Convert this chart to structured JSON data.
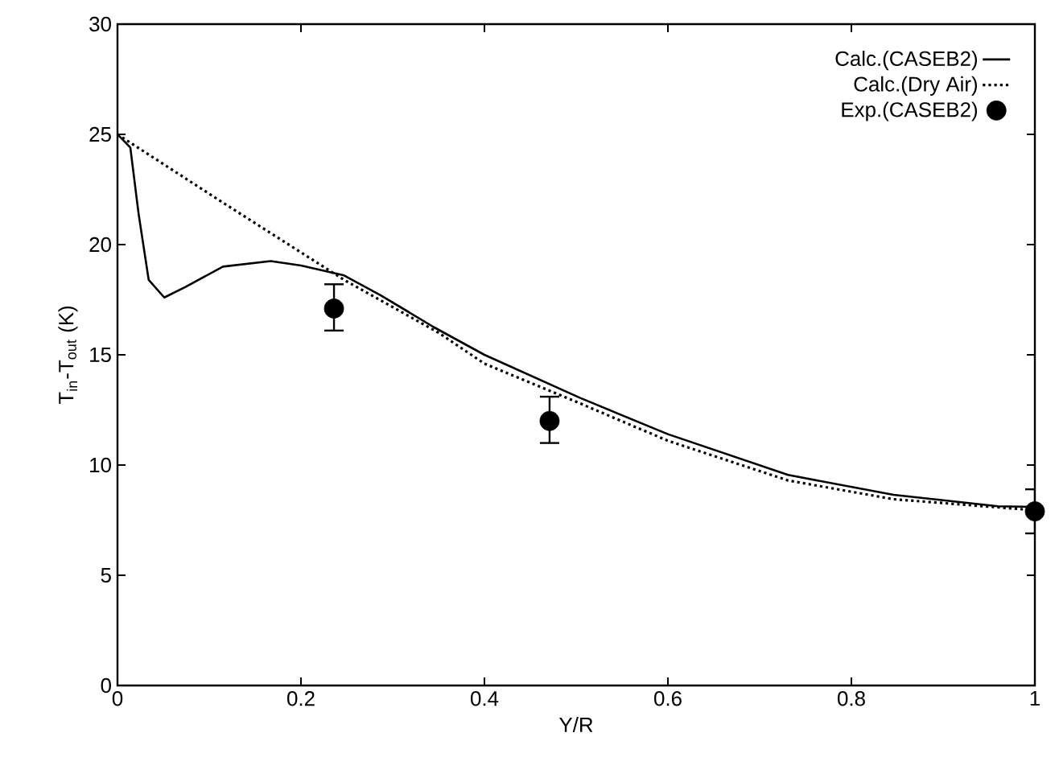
{
  "chart_data": {
    "type": "line",
    "xlabel": "Y/R",
    "ylabel": "T$_{in}$-T$_{out}$ (K)",
    "xlim": [
      0,
      1
    ],
    "ylim": [
      0,
      30
    ],
    "xticks": [
      0,
      0.2,
      0.4,
      0.6,
      0.8,
      1
    ],
    "yticks": [
      0,
      5,
      10,
      15,
      20,
      25,
      30
    ],
    "grid": false,
    "legend": "top right",
    "series": [
      {
        "name": "Calc.(CASEB2)",
        "line_style": "solid",
        "marker": "none",
        "color": "#000000",
        "x": [
          0,
          0.014,
          0.023,
          0.034,
          0.051,
          0.075,
          0.115,
          0.167,
          0.2,
          0.247,
          0.287,
          0.345,
          0.4,
          0.504,
          0.6,
          0.731,
          0.846,
          0.96,
          1.0
        ],
        "values": [
          25.0,
          24.4,
          21.4,
          18.4,
          17.6,
          18.1,
          19.0,
          19.25,
          19.05,
          18.6,
          17.7,
          16.25,
          15.0,
          13.05,
          11.4,
          9.55,
          8.65,
          8.13,
          8.1
        ]
      },
      {
        "name": "Calc.(Dry Air)",
        "line_style": "dotted",
        "marker": "none",
        "color": "#000000",
        "x": [
          0,
          0.115,
          0.247,
          0.35,
          0.4,
          0.504,
          0.6,
          0.731,
          0.846,
          1.0
        ],
        "values": [
          25.0,
          21.9,
          18.4,
          16.0,
          14.6,
          12.8,
          11.1,
          9.3,
          8.45,
          7.95
        ]
      },
      {
        "name": "Exp.(CASEB2)",
        "type": "scatter",
        "marker": "circle",
        "color": "#000000",
        "x": [
          0.236,
          0.471,
          1.0
        ],
        "values": [
          17.1,
          12.0,
          7.9
        ],
        "errors": [
          [
            16.1,
            18.2
          ],
          [
            11.0,
            13.1
          ],
          [
            6.9,
            8.9
          ]
        ]
      }
    ]
  }
}
